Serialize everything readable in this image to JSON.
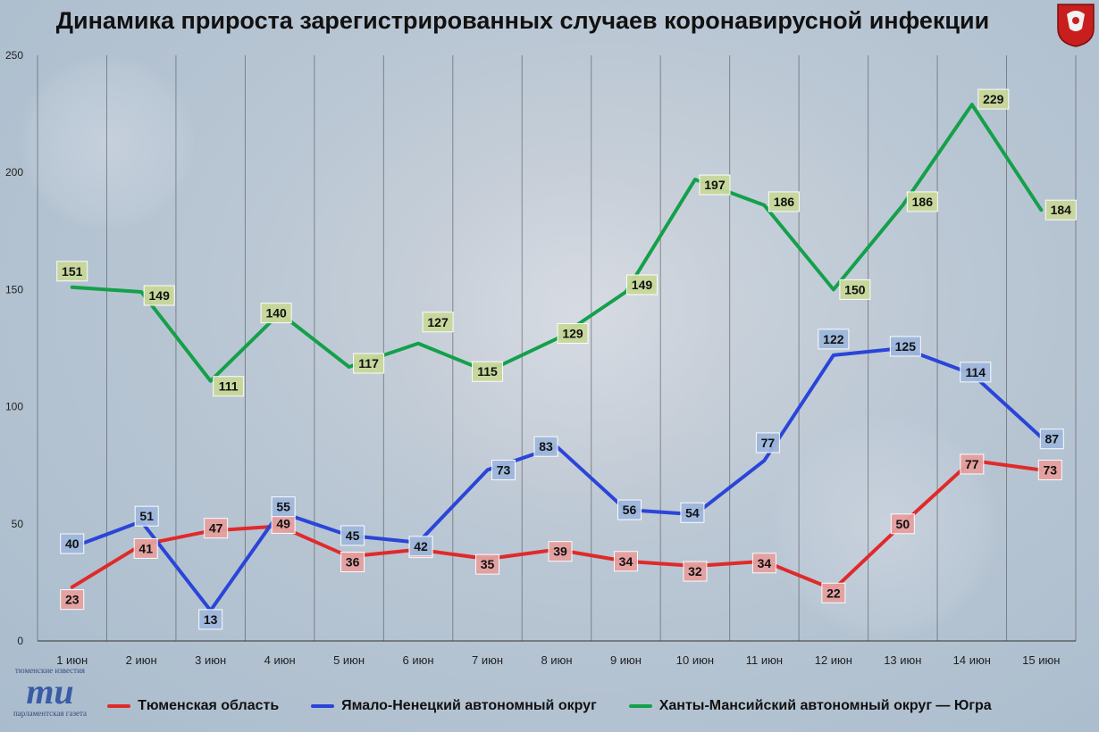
{
  "title": "Динамика прироста зарегистрированных случаев коронавирусной инфекции",
  "logo": {
    "top": "тюменские известия",
    "mark": "тu",
    "bottom": "парламентская газета"
  },
  "colors": {
    "tyumen": "#e02a2a",
    "yamal": "#2a45d8",
    "hmao": "#14a04a",
    "tyumen_label_bg": "#e6a0a0",
    "yamal_label_bg": "#9fb8dc",
    "hmao_label_bg": "#c8d89a"
  },
  "chart_data": {
    "type": "line",
    "title": "Динамика прироста зарегистрированных случаев коронавирусной инфекции",
    "categories": [
      "1 июн",
      "2 июн",
      "3 июн",
      "4 июн",
      "5 июн",
      "6 июн",
      "7 июн",
      "8 июн",
      "9 июн",
      "10 июн",
      "11 июн",
      "12 июн",
      "13 июн",
      "14 июн",
      "15 июн"
    ],
    "ylim": [
      0,
      250
    ],
    "yticks": [
      0,
      50,
      100,
      150,
      200,
      250
    ],
    "grid": "vertical",
    "legend_position": "bottom",
    "series": [
      {
        "name": "Тюменская область",
        "key": "tyumen",
        "values": [
          23,
          41,
          47,
          49,
          36,
          39,
          35,
          39,
          34,
          32,
          34,
          22,
          50,
          77,
          73
        ]
      },
      {
        "name": "Ямало-Ненецкий автономный округ",
        "key": "yamal",
        "values": [
          40,
          51,
          13,
          55,
          45,
          42,
          73,
          83,
          56,
          54,
          77,
          122,
          125,
          114,
          87
        ]
      },
      {
        "name": "Ханты-Мансийский автономный округ — Югра",
        "key": "hmao",
        "values": [
          151,
          149,
          111,
          140,
          117,
          127,
          115,
          129,
          149,
          197,
          186,
          150,
          186,
          229,
          184
        ]
      }
    ]
  }
}
